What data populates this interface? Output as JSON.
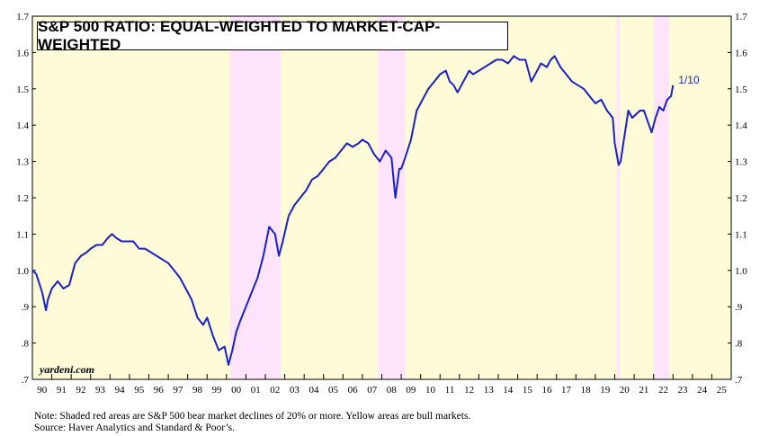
{
  "chart_data": {
    "type": "line",
    "title": "S&P 500 RATIO: EQUAL-WEIGHTED TO MARKET-CAP-WEIGHTED",
    "xlabel": "",
    "ylabel": "",
    "xlim": [
      1990,
      2026
    ],
    "ylim": [
      0.7,
      1.7
    ],
    "y_ticks": [
      {
        "value": 1.7,
        "label": "1.7"
      },
      {
        "value": 1.6,
        "label": "1.6"
      },
      {
        "value": 1.5,
        "label": "1.5"
      },
      {
        "value": 1.4,
        "label": "1.4"
      },
      {
        "value": 1.3,
        "label": "1.3"
      },
      {
        "value": 1.2,
        "label": "1.2"
      },
      {
        "value": 1.1,
        "label": "1.1"
      },
      {
        "value": 1.0,
        "label": "1.0"
      },
      {
        "value": 0.9,
        "label": ".9"
      },
      {
        "value": 0.8,
        "label": ".8"
      },
      {
        "value": 0.7,
        "label": ".7"
      }
    ],
    "x_tick_labels": [
      "90",
      "91",
      "92",
      "93",
      "94",
      "95",
      "96",
      "97",
      "98",
      "99",
      "00",
      "01",
      "02",
      "03",
      "04",
      "05",
      "06",
      "07",
      "08",
      "09",
      "10",
      "11",
      "12",
      "13",
      "14",
      "15",
      "16",
      "17",
      "18",
      "19",
      "20",
      "21",
      "22",
      "23",
      "24",
      "25"
    ],
    "shaded_regions": [
      {
        "type": "bull",
        "start": 1990.0,
        "end": 2000.2,
        "color": "#fdfbd8"
      },
      {
        "type": "bear",
        "start": 2000.2,
        "end": 2002.8,
        "color": "#fde4fb"
      },
      {
        "type": "bull",
        "start": 2002.8,
        "end": 2007.8,
        "color": "#fdfbd8"
      },
      {
        "type": "bear",
        "start": 2007.8,
        "end": 2009.2,
        "color": "#fde4fb"
      },
      {
        "type": "bull",
        "start": 2009.2,
        "end": 2020.1,
        "color": "#fdfbd8"
      },
      {
        "type": "bear",
        "start": 2020.1,
        "end": 2020.25,
        "color": "#fde4fb"
      },
      {
        "type": "bull",
        "start": 2020.25,
        "end": 2022.0,
        "color": "#fdfbd8"
      },
      {
        "type": "bear",
        "start": 2022.0,
        "end": 2022.8,
        "color": "#fde4fb"
      },
      {
        "type": "bull",
        "start": 2022.8,
        "end": 2026.0,
        "color": "#fdfbd8"
      }
    ],
    "series": [
      {
        "name": "Equal-weighted / Market-cap-weighted ratio",
        "color": "#1a1fd0",
        "x": [
          1990.0,
          1990.2,
          1990.5,
          1990.7,
          1990.8,
          1991.0,
          1991.3,
          1991.6,
          1991.9,
          1992.2,
          1992.5,
          1992.8,
          1993.0,
          1993.3,
          1993.6,
          1993.9,
          1994.1,
          1994.3,
          1994.6,
          1994.9,
          1995.2,
          1995.5,
          1995.8,
          1996.1,
          1996.4,
          1996.7,
          1997.0,
          1997.3,
          1997.6,
          1997.9,
          1998.2,
          1998.5,
          1998.8,
          1999.0,
          1999.3,
          1999.6,
          1999.9,
          2000.1,
          2000.3,
          2000.5,
          2000.7,
          2001.0,
          2001.3,
          2001.6,
          2001.9,
          2002.2,
          2002.5,
          2002.7,
          2002.9,
          2003.2,
          2003.5,
          2003.8,
          2004.1,
          2004.4,
          2004.7,
          2005.0,
          2005.3,
          2005.6,
          2005.9,
          2006.2,
          2006.5,
          2006.8,
          2007.0,
          2007.3,
          2007.6,
          2007.9,
          2008.2,
          2008.5,
          2008.7,
          2008.9,
          2009.0,
          2009.2,
          2009.5,
          2009.8,
          2010.1,
          2010.4,
          2010.7,
          2011.0,
          2011.3,
          2011.5,
          2011.7,
          2011.9,
          2012.2,
          2012.5,
          2012.7,
          2013.0,
          2013.3,
          2013.6,
          2013.9,
          2014.2,
          2014.5,
          2014.8,
          2015.1,
          2015.4,
          2015.7,
          2016.0,
          2016.2,
          2016.5,
          2016.7,
          2016.9,
          2017.2,
          2017.5,
          2017.8,
          2018.1,
          2018.4,
          2018.7,
          2019.0,
          2019.3,
          2019.6,
          2019.9,
          2020.0,
          2020.1,
          2020.2,
          2020.3,
          2020.5,
          2020.7,
          2020.9,
          2021.1,
          2021.3,
          2021.5,
          2021.7,
          2021.9,
          2022.1,
          2022.3,
          2022.5,
          2022.7,
          2022.9,
          2023.0
        ],
        "values": [
          1.0,
          0.99,
          0.94,
          0.89,
          0.92,
          0.95,
          0.97,
          0.95,
          0.96,
          1.02,
          1.04,
          1.05,
          1.06,
          1.07,
          1.07,
          1.09,
          1.1,
          1.09,
          1.08,
          1.08,
          1.08,
          1.06,
          1.06,
          1.05,
          1.04,
          1.03,
          1.02,
          1.0,
          0.98,
          0.95,
          0.92,
          0.87,
          0.85,
          0.87,
          0.82,
          0.78,
          0.79,
          0.74,
          0.78,
          0.83,
          0.86,
          0.9,
          0.94,
          0.98,
          1.04,
          1.12,
          1.1,
          1.04,
          1.08,
          1.15,
          1.18,
          1.2,
          1.22,
          1.25,
          1.26,
          1.28,
          1.3,
          1.31,
          1.33,
          1.35,
          1.34,
          1.35,
          1.36,
          1.35,
          1.32,
          1.3,
          1.33,
          1.31,
          1.2,
          1.28,
          1.28,
          1.31,
          1.36,
          1.44,
          1.47,
          1.5,
          1.52,
          1.54,
          1.55,
          1.52,
          1.51,
          1.49,
          1.52,
          1.55,
          1.54,
          1.55,
          1.56,
          1.57,
          1.58,
          1.58,
          1.57,
          1.59,
          1.58,
          1.58,
          1.52,
          1.55,
          1.57,
          1.56,
          1.58,
          1.59,
          1.56,
          1.54,
          1.52,
          1.51,
          1.5,
          1.48,
          1.46,
          1.47,
          1.44,
          1.42,
          1.35,
          1.32,
          1.29,
          1.3,
          1.37,
          1.44,
          1.42,
          1.43,
          1.44,
          1.44,
          1.41,
          1.38,
          1.42,
          1.45,
          1.44,
          1.47,
          1.48,
          1.51
        ]
      }
    ],
    "annotations": [
      {
        "label": "1/10",
        "x": 2023.0,
        "value": 1.51
      }
    ],
    "watermark": "yardeni.com",
    "notes": [
      "Note: Shaded red areas are S&P 500 bear market declines of 20% or more. Yellow areas are bull markets.",
      "Source: Haver Analytics and Standard & Poor’s."
    ]
  }
}
